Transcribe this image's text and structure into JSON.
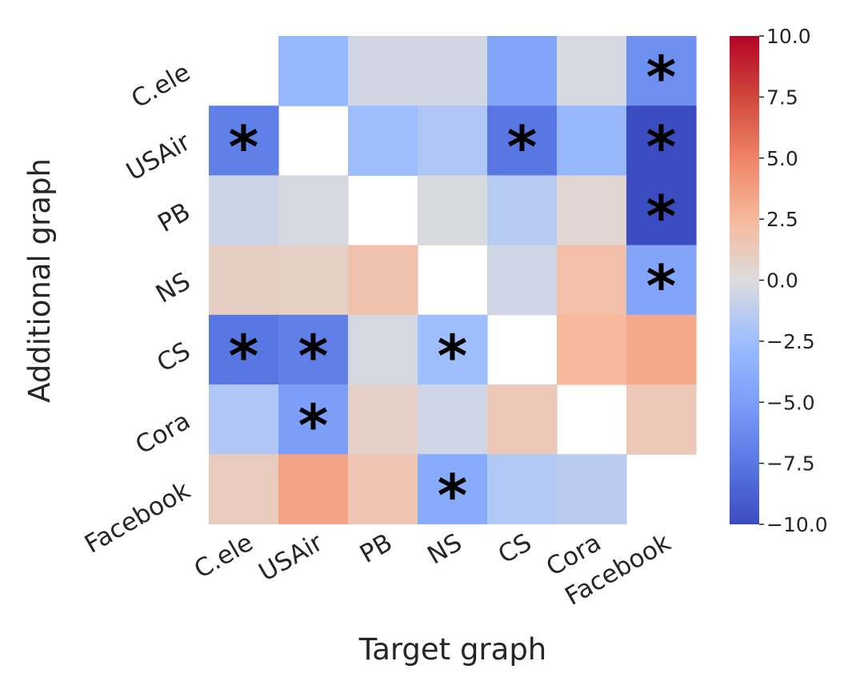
{
  "chart_data": {
    "type": "heatmap",
    "xlabel": "Target graph",
    "ylabel": "Additional graph",
    "x_categories": [
      "C.ele",
      "USAir",
      "PB",
      "NS",
      "CS",
      "Cora",
      "Facebook"
    ],
    "y_categories": [
      "C.ele",
      "USAir",
      "PB",
      "NS",
      "CS",
      "Cora",
      "Facebook"
    ],
    "values": [
      [
        null,
        -3.0,
        -0.5,
        -0.5,
        -4.5,
        -0.3,
        -6.0
      ],
      [
        -7.0,
        null,
        -2.5,
        -1.8,
        -7.5,
        -3.0,
        -10.0
      ],
      [
        -0.7,
        -0.3,
        null,
        -0.2,
        -1.5,
        0.4,
        -10.0
      ],
      [
        1.0,
        0.9,
        1.8,
        null,
        -0.6,
        2.0,
        -4.5
      ],
      [
        -7.5,
        -7.0,
        -0.3,
        -2.5,
        null,
        2.5,
        3.2
      ],
      [
        -1.8,
        -5.0,
        0.8,
        -0.6,
        1.4,
        null,
        1.4
      ],
      [
        1.2,
        3.5,
        1.6,
        -4.0,
        -1.7,
        -1.4,
        null
      ]
    ],
    "significant": [
      [
        false,
        false,
        false,
        false,
        false,
        false,
        true
      ],
      [
        true,
        false,
        false,
        false,
        true,
        false,
        true
      ],
      [
        false,
        false,
        false,
        false,
        false,
        false,
        true
      ],
      [
        false,
        false,
        false,
        false,
        false,
        false,
        true
      ],
      [
        true,
        true,
        false,
        true,
        false,
        false,
        false
      ],
      [
        false,
        true,
        false,
        false,
        false,
        false,
        false
      ],
      [
        false,
        false,
        false,
        true,
        false,
        false,
        false
      ]
    ],
    "marker": "*",
    "colormap": "coolwarm",
    "vmin": -10.0,
    "vmax": 10.0,
    "colorbar_ticks": [
      "10.0",
      "7.5",
      "5.0",
      "2.5",
      "0.0",
      "−2.5",
      "−5.0",
      "−7.5",
      "−10.0"
    ],
    "colorbar_tick_values": [
      10.0,
      7.5,
      5.0,
      2.5,
      0.0,
      -2.5,
      -5.0,
      -7.5,
      -10.0
    ]
  }
}
